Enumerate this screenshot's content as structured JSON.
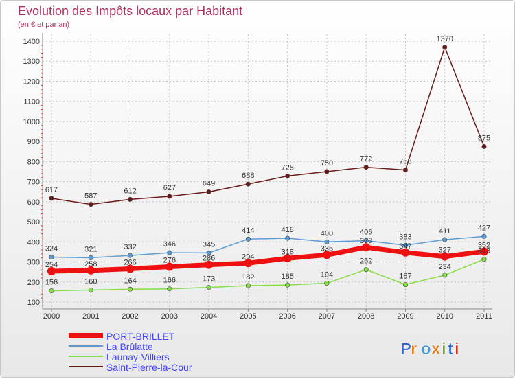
{
  "chart_data": {
    "type": "line",
    "title": "Evolution des Impôts locaux par Habitant",
    "subtitle": "(en € et par an)",
    "xlabel": "",
    "ylabel": "",
    "categories": [
      "2000",
      "2001",
      "2002",
      "2003",
      "2004",
      "2005",
      "2006",
      "2007",
      "2008",
      "2009",
      "2010",
      "2011"
    ],
    "ylim": [
      100,
      1400
    ],
    "yticks": [
      100,
      200,
      300,
      400,
      500,
      600,
      700,
      800,
      900,
      1000,
      1100,
      1200,
      1300,
      1400
    ],
    "grid": true,
    "legend_position": "bottom-left",
    "series": [
      {
        "name": "PORT-BRILLET",
        "color": "#ee1111",
        "values": [
          254,
          258,
          266,
          276,
          286,
          294,
          318,
          335,
          373,
          347,
          327,
          352
        ]
      },
      {
        "name": "La Brûlatte",
        "color": "#5b9bd5",
        "values": [
          324,
          321,
          332,
          346,
          345,
          414,
          418,
          400,
          406,
          383,
          411,
          427
        ]
      },
      {
        "name": "Launay-Villiers",
        "color": "#88dd44",
        "values": [
          156,
          160,
          164,
          166,
          173,
          182,
          185,
          194,
          262,
          187,
          234,
          313
        ]
      },
      {
        "name": "Saint-Pierre-la-Cour",
        "color": "#6b1a1a",
        "values": [
          617,
          587,
          612,
          627,
          649,
          688,
          728,
          750,
          772,
          758,
          1370,
          875
        ]
      }
    ]
  },
  "brand": {
    "letters": [
      "P",
      "r",
      "o",
      "x",
      "i",
      "t",
      "i"
    ]
  },
  "colors": {
    "title": "#b03060",
    "legend_text": "#4444ff",
    "axis_text": "#333333",
    "grid": "#c0c0c0"
  }
}
